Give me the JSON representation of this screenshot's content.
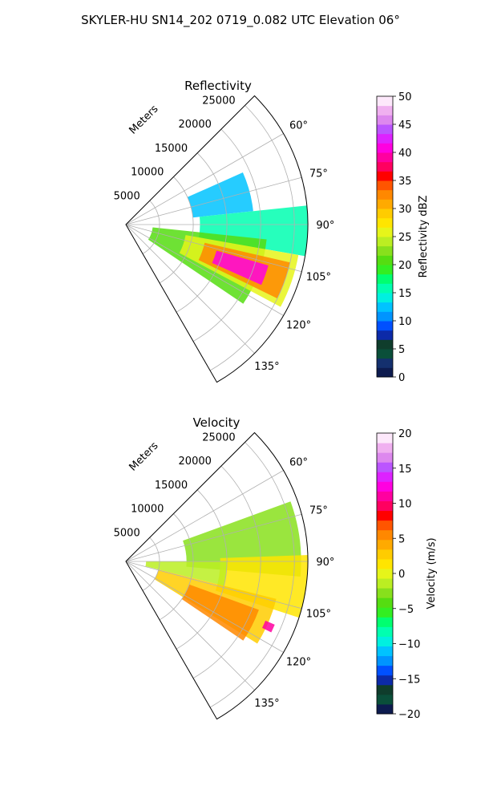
{
  "figure": {
    "title": "SKYLER-HU  SN14_202  0719_0.082 UTC Elevation 06°"
  },
  "chart_data": [
    {
      "type": "heatmap",
      "subtype": "polar-sector",
      "title": "Reflectivity",
      "range_axis": {
        "label": "Meters",
        "ticks": [
          5000,
          10000,
          15000,
          20000,
          25000
        ],
        "max": 27000
      },
      "azimuth_axis": {
        "range_deg": [
          45,
          150
        ],
        "tick_labels": [
          "60°",
          "75°",
          "90°",
          "105°",
          "120°",
          "135°"
        ],
        "tick_values": [
          60,
          75,
          90,
          105,
          120,
          135
        ]
      },
      "grid": true,
      "colorbar": {
        "label": "Reflectivity dBZ",
        "ticks": [
          "0",
          "5",
          "10",
          "15",
          "20",
          "25",
          "30",
          "35",
          "40",
          "45",
          "50"
        ],
        "min": 0,
        "max": 50,
        "colors": [
          "#0d1b4f",
          "#14306e",
          "#0a4f3a",
          "#0f3d2c",
          "#0c2aa8",
          "#0050ff",
          "#0094ff",
          "#00c3ff",
          "#00f0e0",
          "#00ffb0",
          "#00ff70",
          "#33ee22",
          "#55dd11",
          "#88e01c",
          "#bbee22",
          "#e6f51a",
          "#ffe500",
          "#ffcc00",
          "#ffaa00",
          "#ff8800",
          "#ff5500",
          "#ff0000",
          "#ff0060",
          "#ff00a0",
          "#ff00e0",
          "#dd22ff",
          "#bb55ff",
          "#dd88ee",
          "#f0b0f0",
          "#fde8fb"
        ]
      },
      "echo_regions": [
        {
          "level_dbz": 13,
          "az": [
            66,
            84
          ],
          "range": [
            10000,
            19000
          ]
        },
        {
          "level_dbz": 16,
          "az": [
            84,
            100
          ],
          "range": [
            11000,
            27000
          ]
        },
        {
          "level_dbz": 20,
          "az": [
            96,
            124
          ],
          "range": [
            4000,
            21000
          ]
        },
        {
          "level_dbz": 26,
          "az": [
            100,
            118
          ],
          "range": [
            9000,
            26000
          ]
        },
        {
          "level_dbz": 33,
          "az": [
            103,
            116
          ],
          "range": [
            12000,
            25000
          ]
        },
        {
          "level_dbz": 40,
          "az": [
            106,
            114
          ],
          "range": [
            14000,
            22000
          ]
        }
      ]
    },
    {
      "type": "heatmap",
      "subtype": "polar-sector",
      "title": "Velocity",
      "range_axis": {
        "label": "Meters",
        "ticks": [
          5000,
          10000,
          15000,
          20000,
          25000
        ],
        "max": 27000
      },
      "azimuth_axis": {
        "range_deg": [
          45,
          150
        ],
        "tick_labels": [
          "60°",
          "75°",
          "90°",
          "105°",
          "120°",
          "135°"
        ],
        "tick_values": [
          60,
          75,
          90,
          105,
          120,
          135
        ]
      },
      "grid": true,
      "colorbar": {
        "label": "Velocity (m/s)",
        "ticks": [
          "−20",
          "−15",
          "−10",
          "−5",
          "0",
          "5",
          "10",
          "15",
          "20"
        ],
        "min": -20,
        "max": 20,
        "colors": [
          "#0d1b4f",
          "#0a4f3a",
          "#0f3d2c",
          "#0c2aa8",
          "#0050ff",
          "#0094ff",
          "#00c3ff",
          "#00f0e0",
          "#00ffb0",
          "#00ff70",
          "#33ee22",
          "#55dd11",
          "#88e01c",
          "#bbee22",
          "#e6f51a",
          "#ffe500",
          "#ffcc00",
          "#ffaa00",
          "#ff8800",
          "#ff5500",
          "#ff0000",
          "#ff0060",
          "#ff00a0",
          "#ff00e0",
          "#dd22ff",
          "#bb55ff",
          "#dd88ee",
          "#f0b0f0",
          "#fde8fb"
        ]
      },
      "echo_regions": [
        {
          "level_ms": -3,
          "az": [
            70,
            95
          ],
          "range": [
            9000,
            26000
          ]
        },
        {
          "level_ms": 1,
          "az": [
            88,
            108
          ],
          "range": [
            14000,
            27000
          ]
        },
        {
          "level_ms": -2,
          "az": [
            90,
            104
          ],
          "range": [
            3000,
            15000
          ]
        },
        {
          "level_ms": 3,
          "az": [
            104,
            122
          ],
          "range": [
            5000,
            23000
          ]
        },
        {
          "level_ms": 6,
          "az": [
            110,
            124
          ],
          "range": [
            10000,
            21000
          ]
        },
        {
          "level_ms": 11,
          "az": [
            113,
            116
          ],
          "range": [
            22500,
            24000
          ]
        }
      ]
    }
  ]
}
